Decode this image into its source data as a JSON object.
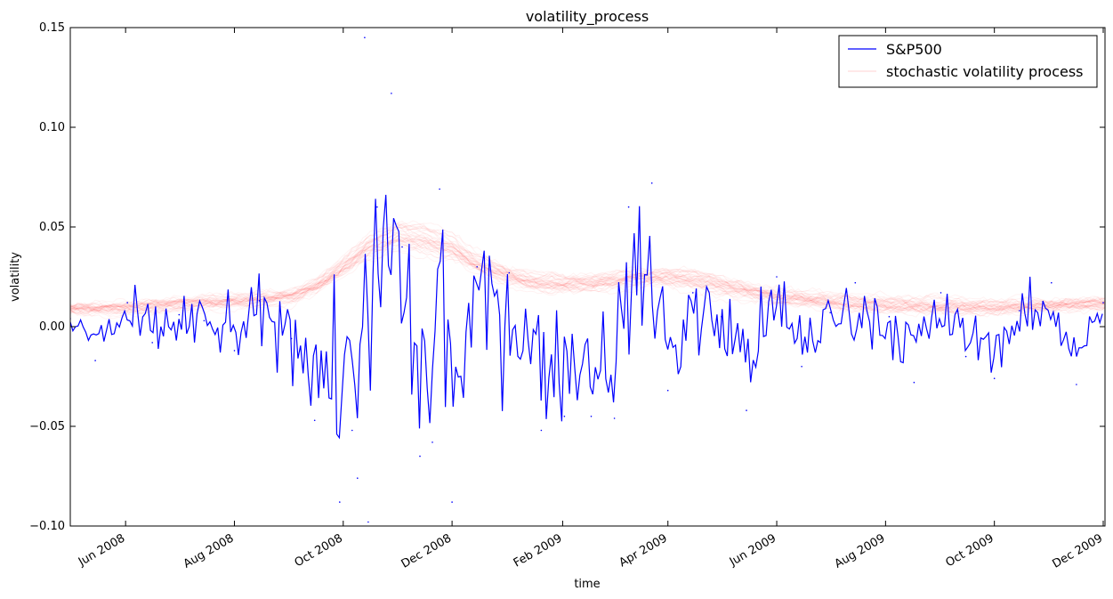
{
  "chart_data": {
    "type": "line",
    "title": "volatility_process",
    "xlabel": "time",
    "ylabel": "volatility",
    "xlim": [
      "2008-05-01",
      "2009-12-02"
    ],
    "ylim": [
      -0.1,
      0.15
    ],
    "y_ticks": [
      -0.1,
      -0.05,
      0.0,
      0.05,
      0.1,
      0.15
    ],
    "y_tick_labels": [
      "−0.10",
      "−0.05",
      "0.00",
      "0.05",
      "0.10",
      "0.15"
    ],
    "x_ticks": [
      "2008-06-01",
      "2008-08-01",
      "2008-10-01",
      "2008-12-01",
      "2009-02-01",
      "2009-04-01",
      "2009-06-01",
      "2009-08-01",
      "2009-10-01",
      "2009-12-01"
    ],
    "x_tick_labels": [
      "Jun 2008",
      "Aug 2008",
      "Oct 2008",
      "Dec 2008",
      "Feb 2009",
      "Apr 2009",
      "Jun 2009",
      "Aug 2009",
      "Oct 2009",
      "Dec 2009"
    ],
    "grid": false,
    "legend_position": "top-right",
    "series": [
      {
        "name": "S&P500",
        "color": "#0000ff",
        "kind": "daily returns",
        "x": [
          "2008-05-01",
          "2008-05-15",
          "2008-06-02",
          "2008-06-16",
          "2008-07-01",
          "2008-07-15",
          "2008-08-01",
          "2008-08-15",
          "2008-09-02",
          "2008-09-15",
          "2008-09-29",
          "2008-10-06",
          "2008-10-09",
          "2008-10-13",
          "2008-10-15",
          "2008-10-20",
          "2008-10-28",
          "2008-11-03",
          "2008-11-13",
          "2008-11-20",
          "2008-11-24",
          "2008-12-01",
          "2008-12-15",
          "2009-01-02",
          "2009-01-20",
          "2009-02-02",
          "2009-02-17",
          "2009-03-02",
          "2009-03-10",
          "2009-03-23",
          "2009-04-01",
          "2009-04-15",
          "2009-05-01",
          "2009-05-15",
          "2009-06-01",
          "2009-06-15",
          "2009-07-01",
          "2009-07-15",
          "2009-08-03",
          "2009-08-17",
          "2009-09-01",
          "2009-09-15",
          "2009-10-01",
          "2009-10-15",
          "2009-11-02",
          "2009-11-16",
          "2009-12-01"
        ],
        "y": [
          0.004,
          -0.017,
          0.012,
          -0.008,
          0.006,
          0.003,
          -0.012,
          0.013,
          -0.006,
          -0.047,
          -0.088,
          -0.052,
          -0.076,
          0.145,
          -0.098,
          0.06,
          0.117,
          0.04,
          -0.065,
          -0.058,
          0.069,
          -0.088,
          0.03,
          0.027,
          -0.052,
          -0.045,
          -0.045,
          -0.046,
          0.06,
          0.072,
          -0.032,
          0.017,
          0.005,
          -0.042,
          0.025,
          -0.02,
          0.007,
          0.022,
          0.005,
          -0.028,
          0.017,
          -0.015,
          -0.026,
          0.008,
          0.022,
          -0.029,
          0.012
        ]
      },
      {
        "name": "stochastic volatility process",
        "color": "#ff0000",
        "kind": "sampled paths (translucent)",
        "x": [
          "2008-05-01",
          "2008-06-01",
          "2008-07-01",
          "2008-08-01",
          "2008-09-01",
          "2008-09-15",
          "2008-10-01",
          "2008-10-15",
          "2008-11-01",
          "2008-11-15",
          "2008-12-01",
          "2008-12-15",
          "2009-01-01",
          "2009-01-15",
          "2009-02-01",
          "2009-02-15",
          "2009-03-01",
          "2009-03-15",
          "2009-04-01",
          "2009-04-15",
          "2009-05-01",
          "2009-05-15",
          "2009-06-01",
          "2009-07-01",
          "2009-08-01",
          "2009-09-01",
          "2009-10-01",
          "2009-11-01",
          "2009-12-01"
        ],
        "y": [
          0.009,
          0.01,
          0.012,
          0.013,
          0.015,
          0.02,
          0.03,
          0.04,
          0.046,
          0.044,
          0.04,
          0.032,
          0.026,
          0.023,
          0.022,
          0.022,
          0.023,
          0.025,
          0.025,
          0.024,
          0.021,
          0.019,
          0.016,
          0.014,
          0.012,
          0.011,
          0.01,
          0.011,
          0.012
        ]
      }
    ]
  }
}
